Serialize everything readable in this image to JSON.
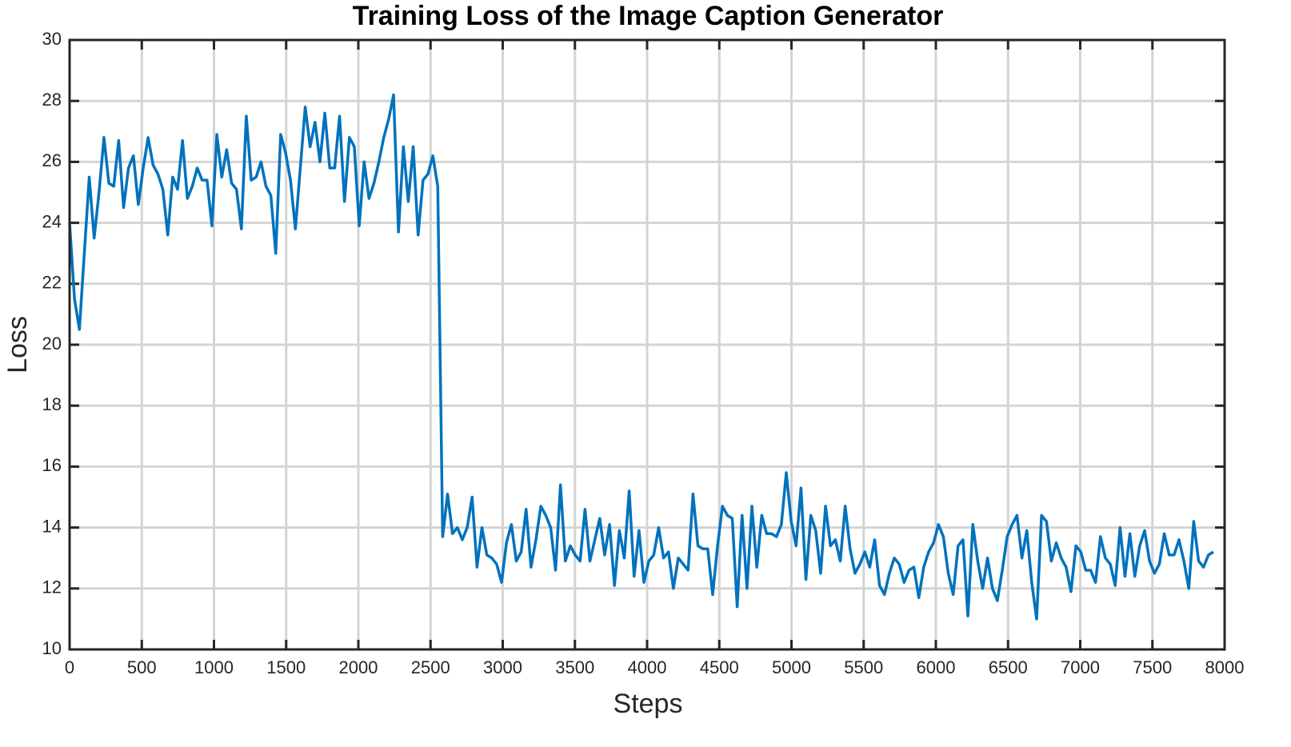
{
  "chart_data": {
    "type": "line",
    "title": "Training Loss of the Image Caption Generator",
    "x_label": "Steps",
    "y_label": "Loss",
    "xlim": [
      0,
      8000
    ],
    "xticks": [
      0,
      500,
      1000,
      1500,
      2000,
      2500,
      3000,
      3500,
      4000,
      4500,
      5000,
      5500,
      6000,
      6500,
      7000,
      7500,
      8000
    ],
    "ylim": [
      10,
      30
    ],
    "yticks": [
      10,
      12,
      14,
      16,
      18,
      20,
      22,
      24,
      26,
      28,
      30
    ],
    "grid": true,
    "x": [
      0,
      34,
      68,
      102,
      136,
      170,
      204,
      238,
      272,
      306,
      340,
      374,
      408,
      442,
      476,
      510,
      544,
      578,
      612,
      646,
      680,
      714,
      748,
      782,
      816,
      850,
      884,
      918,
      952,
      986,
      1020,
      1054,
      1088,
      1122,
      1156,
      1190,
      1224,
      1258,
      1292,
      1326,
      1360,
      1394,
      1428,
      1462,
      1496,
      1530,
      1564,
      1598,
      1632,
      1666,
      1700,
      1734,
      1768,
      1802,
      1836,
      1870,
      1904,
      1938,
      1972,
      2006,
      2040,
      2074,
      2108,
      2142,
      2176,
      2210,
      2244,
      2278,
      2312,
      2346,
      2380,
      2414,
      2448,
      2482,
      2516,
      2550,
      2584,
      2618,
      2652,
      2686,
      2720,
      2754,
      2788,
      2822,
      2856,
      2890,
      2924,
      2958,
      2992,
      3026,
      3060,
      3094,
      3128,
      3162,
      3196,
      3230,
      3264,
      3298,
      3332,
      3366,
      3400,
      3434,
      3468,
      3502,
      3536,
      3570,
      3604,
      3638,
      3672,
      3706,
      3740,
      3774,
      3808,
      3842,
      3876,
      3910,
      3944,
      3978,
      4012,
      4046,
      4080,
      4114,
      4148,
      4182,
      4216,
      4250,
      4284,
      4318,
      4352,
      4386,
      4420,
      4454,
      4488,
      4522,
      4556,
      4590,
      4624,
      4658,
      4692,
      4726,
      4760,
      4794,
      4828,
      4862,
      4896,
      4930,
      4964,
      4998,
      5032,
      5066,
      5100,
      5134,
      5168,
      5202,
      5236,
      5270,
      5304,
      5338,
      5372,
      5406,
      5440,
      5474,
      5508,
      5542,
      5576,
      5610,
      5644,
      5678,
      5712,
      5746,
      5780,
      5814,
      5848,
      5882,
      5916,
      5950,
      5984,
      6018,
      6052,
      6086,
      6120,
      6154,
      6188,
      6222,
      6256,
      6290,
      6324,
      6358,
      6392,
      6426,
      6460,
      6494,
      6528,
      6562,
      6596,
      6630,
      6664,
      6698,
      6732,
      6766,
      6800,
      6834,
      6868,
      6902,
      6936,
      6970,
      7004,
      7038,
      7072,
      7106,
      7140,
      7174,
      7208,
      7242,
      7276,
      7310,
      7344,
      7378,
      7412,
      7446,
      7480,
      7514,
      7548,
      7582,
      7616,
      7650,
      7684,
      7718,
      7752,
      7786,
      7820,
      7854,
      7888,
      7922
    ],
    "series": [
      {
        "color": "#0072bd",
        "values": [
          24,
          21.5,
          20.5,
          23,
          25.5,
          23.5,
          25,
          26.8,
          25.3,
          25.2,
          26.7,
          24.5,
          25.8,
          26.2,
          24.6,
          25.8,
          26.8,
          25.9,
          25.6,
          25.1,
          23.6,
          25.5,
          25.1,
          26.7,
          24.8,
          25.2,
          25.8,
          25.4,
          25.4,
          23.9,
          26.9,
          25.5,
          26.4,
          25.3,
          25.1,
          23.8,
          27.5,
          25.4,
          25.5,
          26,
          25.2,
          24.9,
          23,
          26.9,
          26.3,
          25.4,
          23.8,
          25.8,
          27.8,
          26.5,
          27.3,
          26.0,
          27.6,
          25.8,
          25.8,
          27.5,
          24.7,
          26.8,
          26.5,
          23.9,
          26,
          24.8,
          25.3,
          26,
          26.8,
          27.4,
          28.2,
          23.7,
          26.5,
          24.7,
          26.5,
          23.6,
          25.4,
          25.6,
          26.2,
          25.2,
          13.7,
          15.1,
          13.8,
          14.0,
          13.6,
          14.0,
          15.0,
          12.7,
          14.0,
          13.1,
          13.0,
          12.8,
          12.2,
          13.5,
          14.1,
          12.9,
          13.2,
          14.6,
          12.7,
          13.6,
          14.7,
          14.4,
          14.0,
          12.6,
          15.4,
          12.9,
          13.4,
          13.1,
          12.9,
          14.6,
          12.9,
          13.6,
          14.3,
          13.1,
          14.1,
          12.1,
          13.9,
          13.0,
          15.2,
          12.4,
          13.9,
          12.2,
          12.9,
          13.1,
          14.0,
          13.0,
          13.2,
          12.0,
          13.0,
          12.8,
          12.6,
          15.1,
          13.4,
          13.3,
          13.3,
          11.8,
          13.4,
          14.7,
          14.4,
          14.3,
          11.4,
          14.4,
          12.0,
          14.7,
          12.7,
          14.4,
          13.8,
          13.8,
          13.7,
          14.1,
          15.8,
          14.2,
          13.4,
          15.3,
          12.3,
          14.4,
          13.9,
          12.5,
          14.7,
          13.4,
          13.6,
          12.9,
          14.7,
          13.3,
          12.5,
          12.8,
          13.2,
          12.7,
          13.6,
          12.1,
          11.8,
          12.5,
          13.0,
          12.8,
          12.2,
          12.6,
          12.7,
          11.7,
          12.7,
          13.2,
          13.5,
          14.1,
          13.7,
          12.5,
          11.8,
          13.4,
          13.6,
          11.1,
          14.1,
          12.9,
          12.0,
          13.0,
          12.0,
          11.6,
          12.6,
          13.7,
          14.1,
          14.4,
          13.0,
          13.9,
          12.2,
          11.0,
          14.4,
          14.2,
          12.9,
          13.5,
          13.0,
          12.7,
          11.9,
          13.4,
          13.2,
          12.6,
          12.6,
          12.2,
          13.7,
          13.0,
          12.8,
          12.1,
          14.0,
          12.4,
          13.8,
          12.4,
          13.4,
          13.9,
          12.9,
          12.5,
          12.8,
          13.8,
          13.1,
          13.1,
          13.6,
          12.9,
          12.0,
          14.2,
          12.9,
          12.7,
          13.1,
          13.2
        ]
      }
    ]
  }
}
